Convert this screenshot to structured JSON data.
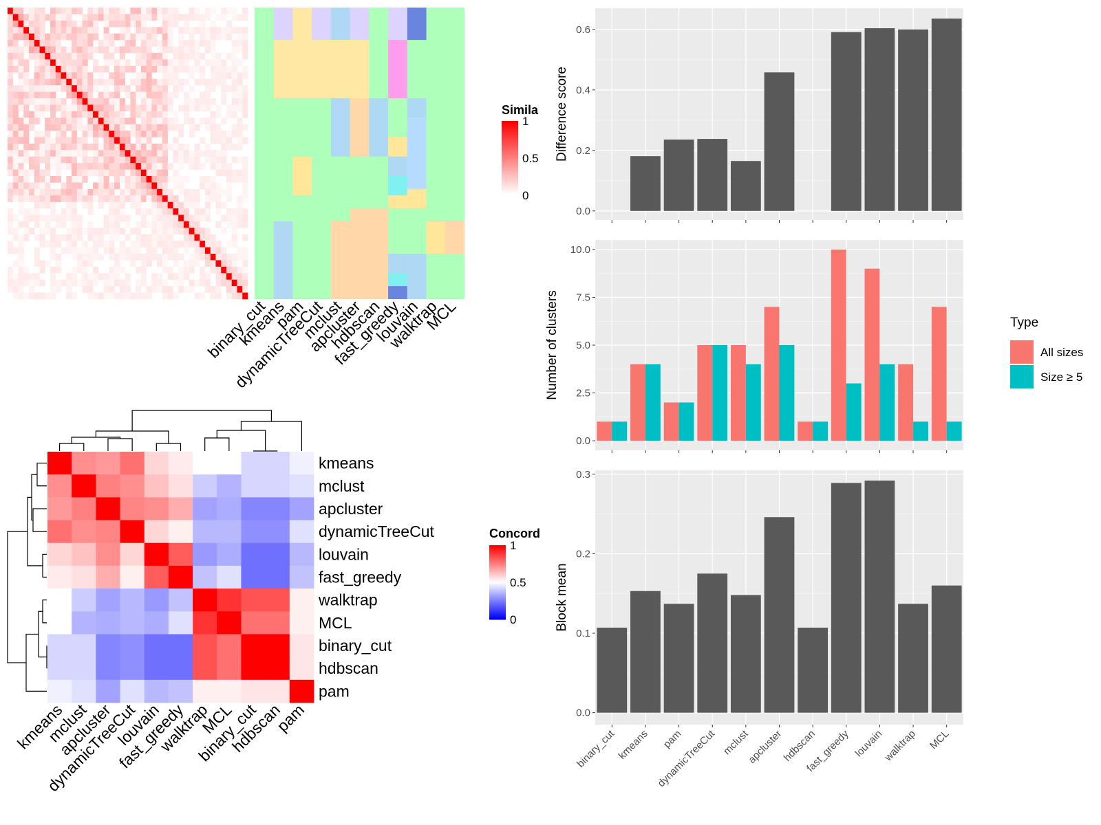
{
  "chart_data": [
    {
      "type": "heatmap",
      "name": "similarity-matrix-with-cluster-annotations",
      "legend_title": "Similarity",
      "legend_title_visible": "Simila",
      "legend_ticks": [
        "1",
        "0.5",
        "0"
      ],
      "methods": [
        "binary_cut",
        "kmeans",
        "pam",
        "dynamicTreeCut",
        "mclust",
        "apcluster",
        "hdbscan",
        "fast_greedy",
        "louvain",
        "walktrap",
        "MCL"
      ],
      "n_items": 45,
      "colors": {
        "low": "#FFFFFF",
        "high": "#FF0000"
      }
    },
    {
      "type": "heatmap",
      "name": "concordance-heatmap",
      "legend_title": "Concordance",
      "legend_title_visible": "Concord",
      "legend_ticks": [
        "1",
        "0.5",
        "0"
      ],
      "colors": {
        "low": "#0000FF",
        "mid": "#FFFFFF",
        "high": "#FF0000"
      },
      "rows": [
        "kmeans",
        "mclust",
        "apcluster",
        "dynamicTreeCut",
        "louvain",
        "fast_greedy",
        "walktrap",
        "MCL",
        "binary_cut",
        "hdbscan",
        "pam"
      ],
      "cols": [
        "kmeans",
        "mclust",
        "apcluster",
        "dynamicTreeCut",
        "louvain",
        "fast_greedy",
        "walktrap",
        "MCL",
        "binary_cut",
        "hdbscan",
        "pam"
      ],
      "values": [
        [
          1.0,
          0.72,
          0.7,
          0.78,
          0.58,
          0.54,
          0.5,
          0.5,
          0.42,
          0.42,
          0.47
        ],
        [
          0.72,
          1.0,
          0.75,
          0.72,
          0.62,
          0.56,
          0.4,
          0.35,
          0.42,
          0.42,
          0.44
        ],
        [
          0.7,
          0.75,
          1.0,
          0.74,
          0.72,
          0.66,
          0.32,
          0.34,
          0.26,
          0.26,
          0.32
        ],
        [
          0.78,
          0.72,
          0.74,
          1.0,
          0.58,
          0.53,
          0.36,
          0.36,
          0.28,
          0.28,
          0.44
        ],
        [
          0.58,
          0.62,
          0.72,
          0.58,
          1.0,
          0.82,
          0.3,
          0.34,
          0.22,
          0.22,
          0.36
        ],
        [
          0.54,
          0.56,
          0.66,
          0.53,
          0.82,
          1.0,
          0.38,
          0.44,
          0.22,
          0.22,
          0.38
        ],
        [
          0.5,
          0.4,
          0.32,
          0.36,
          0.3,
          0.38,
          1.0,
          0.9,
          0.84,
          0.84,
          0.53
        ],
        [
          0.5,
          0.35,
          0.34,
          0.36,
          0.34,
          0.44,
          0.9,
          1.0,
          0.78,
          0.78,
          0.53
        ],
        [
          0.42,
          0.42,
          0.26,
          0.28,
          0.22,
          0.22,
          0.84,
          0.78,
          1.0,
          1.0,
          0.55
        ],
        [
          0.42,
          0.42,
          0.26,
          0.28,
          0.22,
          0.22,
          0.84,
          0.78,
          1.0,
          1.0,
          0.55
        ],
        [
          0.47,
          0.44,
          0.32,
          0.44,
          0.36,
          0.38,
          0.53,
          0.53,
          0.55,
          0.55,
          1.0
        ]
      ]
    },
    {
      "type": "bar",
      "name": "difference-score",
      "categories": [
        "binary_cut",
        "kmeans",
        "pam",
        "dynamicTreeCut",
        "mclust",
        "apcluster",
        "hdbscan",
        "fast_greedy",
        "louvain",
        "walktrap",
        "MCL"
      ],
      "values": [
        0.0,
        0.181,
        0.236,
        0.238,
        0.165,
        0.458,
        0.0,
        0.591,
        0.604,
        0.6,
        0.636
      ],
      "ylabel": "Difference score",
      "ylim": [
        -0.03,
        0.67
      ],
      "yticks": [
        0.0,
        0.2,
        0.4,
        0.6
      ],
      "ytick_labels": [
        "0.0",
        "0.2",
        "0.4",
        "0.6"
      ],
      "color": "#595959"
    },
    {
      "type": "bar",
      "name": "number-of-clusters",
      "categories": [
        "binary_cut",
        "kmeans",
        "pam",
        "dynamicTreeCut",
        "mclust",
        "apcluster",
        "hdbscan",
        "fast_greedy",
        "louvain",
        "walktrap",
        "MCL"
      ],
      "series": [
        {
          "name": "All sizes",
          "values": [
            1,
            4,
            2,
            5,
            5,
            7,
            1,
            10,
            9,
            4,
            7
          ],
          "color": "#F8766D"
        },
        {
          "name": "Size ≥ 5",
          "values": [
            1,
            4,
            2,
            5,
            4,
            5,
            1,
            3,
            4,
            1,
            1
          ],
          "color": "#00BFC4"
        }
      ],
      "ylabel": "Number of clusters",
      "ylim": [
        -0.5,
        10.5
      ],
      "yticks": [
        0,
        2.5,
        5,
        7.5,
        10
      ],
      "ytick_labels": [
        "0.0",
        "2.5",
        "5.0",
        "7.5",
        "10.0"
      ],
      "legend": {
        "title": "Type",
        "position": "right"
      }
    },
    {
      "type": "bar",
      "name": "block-mean",
      "categories": [
        "binary_cut",
        "kmeans",
        "pam",
        "dynamicTreeCut",
        "mclust",
        "apcluster",
        "hdbscan",
        "fast_greedy",
        "louvain",
        "walktrap",
        "MCL"
      ],
      "values": [
        0.107,
        0.153,
        0.137,
        0.175,
        0.148,
        0.246,
        0.107,
        0.289,
        0.292,
        0.137,
        0.16
      ],
      "ylabel": "Block mean",
      "ylim": [
        -0.015,
        0.305
      ],
      "yticks": [
        0.0,
        0.1,
        0.2,
        0.3
      ],
      "ytick_labels": [
        "0.0",
        "0.1",
        "0.2",
        "0.3"
      ],
      "color": "#595959"
    }
  ],
  "palette": {
    "panel_bg": "#EBEBEB",
    "grid": "#FFFFFF",
    "annotation_bg": "#AEFFB9",
    "annotation_colors": [
      "#DCD3FF",
      "#FFE8A3",
      "#AFD8F5",
      "#FFD7A8",
      "#FFC0B3",
      "#FF9CEB",
      "#6A85DE",
      "#80F0F0",
      "#FFE699",
      "#B5DCFF"
    ]
  }
}
